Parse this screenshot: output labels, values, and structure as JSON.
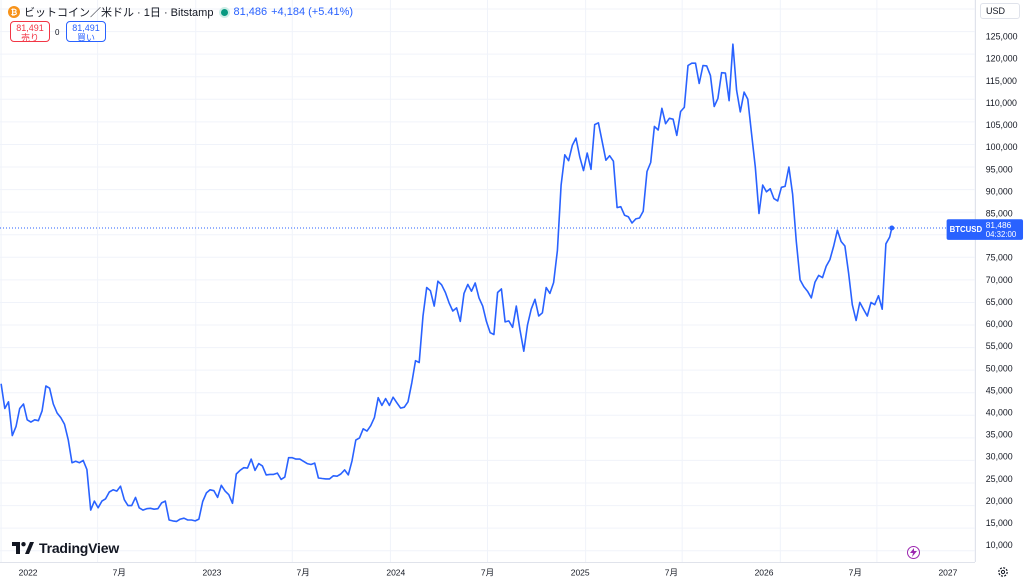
{
  "header": {
    "coin_icon": "bitcoin-icon",
    "title": "ビットコイン／米ドル · 1日 · Bitstamp",
    "last": "81,486",
    "change": "+4,184 (+5.41%)"
  },
  "trade": {
    "sell_price": "81,491",
    "sell_label": "売り",
    "spread": "0",
    "buy_price": "81,491",
    "buy_label": "買い"
  },
  "currency": "USD",
  "price_tag": {
    "symbol": "BTCUSD",
    "price": "81,486",
    "countdown": "04:32:00"
  },
  "logo_text": "TradingView",
  "colors": {
    "line": "#2962ff",
    "grid": "#f0f3fa",
    "sell": "#f23645",
    "buy": "#2962ff"
  },
  "chart_data": {
    "type": "line",
    "series": [
      {
        "values": [
          [
            "2022-01-01",
            47000
          ],
          [
            "2022-01-08",
            41500
          ],
          [
            "2022-01-15",
            43000
          ],
          [
            "2022-01-22",
            35500
          ],
          [
            "2022-01-29",
            37500
          ],
          [
            "2022-02-05",
            41500
          ],
          [
            "2022-02-12",
            42500
          ],
          [
            "2022-02-19",
            39000
          ],
          [
            "2022-02-26",
            38500
          ],
          [
            "2022-03-05",
            39000
          ],
          [
            "2022-03-12",
            38800
          ],
          [
            "2022-03-19",
            41000
          ],
          [
            "2022-03-26",
            46500
          ],
          [
            "2022-04-02",
            46000
          ],
          [
            "2022-04-09",
            42500
          ],
          [
            "2022-04-16",
            40500
          ],
          [
            "2022-04-23",
            39500
          ],
          [
            "2022-04-30",
            38000
          ],
          [
            "2022-05-07",
            34500
          ],
          [
            "2022-05-14",
            29500
          ],
          [
            "2022-05-21",
            29800
          ],
          [
            "2022-05-28",
            29500
          ],
          [
            "2022-06-04",
            30000
          ],
          [
            "2022-06-11",
            28000
          ],
          [
            "2022-06-18",
            19000
          ],
          [
            "2022-06-25",
            21000
          ],
          [
            "2022-07-02",
            19500
          ],
          [
            "2022-07-09",
            21000
          ],
          [
            "2022-07-16",
            21500
          ],
          [
            "2022-07-23",
            23000
          ],
          [
            "2022-07-30",
            23500
          ],
          [
            "2022-08-06",
            23200
          ],
          [
            "2022-08-13",
            24300
          ],
          [
            "2022-08-20",
            21300
          ],
          [
            "2022-08-27",
            20000
          ],
          [
            "2022-09-03",
            20000
          ],
          [
            "2022-09-10",
            21800
          ],
          [
            "2022-09-17",
            19500
          ],
          [
            "2022-09-24",
            19000
          ],
          [
            "2022-10-01",
            19300
          ],
          [
            "2022-10-08",
            19400
          ],
          [
            "2022-10-15",
            19200
          ],
          [
            "2022-10-22",
            19300
          ],
          [
            "2022-10-29",
            20600
          ],
          [
            "2022-11-05",
            21000
          ],
          [
            "2022-11-12",
            16800
          ],
          [
            "2022-11-19",
            16600
          ],
          [
            "2022-11-26",
            16500
          ],
          [
            "2022-12-03",
            17000
          ],
          [
            "2022-12-10",
            17200
          ],
          [
            "2022-12-17",
            16800
          ],
          [
            "2022-12-24",
            16800
          ],
          [
            "2022-12-31",
            16600
          ],
          [
            "2023-01-07",
            17000
          ],
          [
            "2023-01-14",
            20900
          ],
          [
            "2023-01-21",
            22800
          ],
          [
            "2023-01-28",
            23500
          ],
          [
            "2023-02-04",
            23300
          ],
          [
            "2023-02-11",
            21800
          ],
          [
            "2023-02-18",
            24500
          ],
          [
            "2023-02-25",
            23200
          ],
          [
            "2023-03-04",
            22400
          ],
          [
            "2023-03-11",
            20500
          ],
          [
            "2023-03-18",
            27000
          ],
          [
            "2023-03-25",
            27800
          ],
          [
            "2023-04-01",
            28400
          ],
          [
            "2023-04-08",
            28300
          ],
          [
            "2023-04-15",
            30300
          ],
          [
            "2023-04-22",
            27800
          ],
          [
            "2023-04-29",
            29300
          ],
          [
            "2023-05-06",
            28800
          ],
          [
            "2023-05-13",
            26800
          ],
          [
            "2023-05-20",
            26900
          ],
          [
            "2023-05-27",
            26900
          ],
          [
            "2023-06-03",
            27200
          ],
          [
            "2023-06-10",
            25800
          ],
          [
            "2023-06-17",
            26300
          ],
          [
            "2023-06-24",
            30600
          ],
          [
            "2023-07-01",
            30600
          ],
          [
            "2023-07-08",
            30300
          ],
          [
            "2023-07-15",
            30300
          ],
          [
            "2023-07-22",
            29800
          ],
          [
            "2023-07-29",
            29300
          ],
          [
            "2023-08-05",
            29100
          ],
          [
            "2023-08-12",
            29400
          ],
          [
            "2023-08-19",
            26100
          ],
          [
            "2023-08-26",
            26000
          ],
          [
            "2023-09-02",
            25900
          ],
          [
            "2023-09-09",
            25900
          ],
          [
            "2023-09-16",
            26600
          ],
          [
            "2023-09-23",
            26500
          ],
          [
            "2023-09-30",
            27000
          ],
          [
            "2023-10-07",
            27900
          ],
          [
            "2023-10-14",
            26800
          ],
          [
            "2023-10-21",
            29900
          ],
          [
            "2023-10-28",
            34500
          ],
          [
            "2023-11-04",
            35000
          ],
          [
            "2023-11-11",
            37000
          ],
          [
            "2023-11-18",
            36500
          ],
          [
            "2023-11-25",
            37700
          ],
          [
            "2023-12-02",
            39500
          ],
          [
            "2023-12-09",
            43900
          ],
          [
            "2023-12-16",
            42200
          ],
          [
            "2023-12-23",
            43700
          ],
          [
            "2023-12-30",
            42200
          ],
          [
            "2024-01-06",
            44000
          ],
          [
            "2024-01-13",
            42800
          ],
          [
            "2024-01-20",
            41600
          ],
          [
            "2024-01-27",
            41800
          ],
          [
            "2024-02-03",
            43000
          ],
          [
            "2024-02-10",
            47200
          ],
          [
            "2024-02-17",
            52100
          ],
          [
            "2024-02-24",
            51700
          ],
          [
            "2024-03-02",
            62000
          ],
          [
            "2024-03-09",
            68300
          ],
          [
            "2024-03-16",
            67600
          ],
          [
            "2024-03-23",
            64200
          ],
          [
            "2024-03-30",
            69700
          ],
          [
            "2024-04-06",
            68900
          ],
          [
            "2024-04-13",
            67200
          ],
          [
            "2024-04-20",
            64900
          ],
          [
            "2024-04-27",
            63100
          ],
          [
            "2024-05-04",
            63800
          ],
          [
            "2024-05-11",
            60800
          ],
          [
            "2024-05-18",
            67000
          ],
          [
            "2024-05-25",
            69000
          ],
          [
            "2024-06-01",
            67500
          ],
          [
            "2024-06-08",
            69300
          ],
          [
            "2024-06-15",
            66000
          ],
          [
            "2024-06-22",
            64200
          ],
          [
            "2024-06-29",
            60800
          ],
          [
            "2024-07-06",
            58300
          ],
          [
            "2024-07-13",
            57900
          ],
          [
            "2024-07-20",
            67200
          ],
          [
            "2024-07-27",
            68000
          ],
          [
            "2024-08-03",
            60700
          ],
          [
            "2024-08-10",
            60900
          ],
          [
            "2024-08-17",
            59500
          ],
          [
            "2024-08-24",
            64200
          ],
          [
            "2024-08-31",
            58900
          ],
          [
            "2024-09-07",
            54200
          ],
          [
            "2024-09-14",
            60000
          ],
          [
            "2024-09-21",
            63500
          ],
          [
            "2024-09-28",
            65700
          ],
          [
            "2024-10-05",
            62000
          ],
          [
            "2024-10-12",
            62700
          ],
          [
            "2024-10-19",
            68300
          ],
          [
            "2024-10-26",
            67000
          ],
          [
            "2024-11-02",
            69400
          ],
          [
            "2024-11-09",
            76500
          ],
          [
            "2024-11-16",
            91000
          ],
          [
            "2024-11-23",
            97700
          ],
          [
            "2024-11-30",
            96400
          ],
          [
            "2024-12-07",
            99800
          ],
          [
            "2024-12-14",
            101400
          ],
          [
            "2024-12-21",
            97200
          ],
          [
            "2024-12-28",
            94200
          ],
          [
            "2025-01-04",
            98100
          ],
          [
            "2025-01-11",
            94500
          ],
          [
            "2025-01-18",
            104400
          ],
          [
            "2025-01-25",
            104800
          ],
          [
            "2025-02-01",
            100600
          ],
          [
            "2025-02-08",
            96500
          ],
          [
            "2025-02-15",
            97500
          ],
          [
            "2025-02-22",
            96300
          ],
          [
            "2025-03-01",
            86000
          ],
          [
            "2025-03-08",
            86200
          ],
          [
            "2025-03-15",
            84300
          ],
          [
            "2025-03-22",
            84000
          ],
          [
            "2025-03-29",
            82600
          ],
          [
            "2025-04-05",
            83500
          ],
          [
            "2025-04-12",
            83700
          ],
          [
            "2025-04-19",
            85200
          ],
          [
            "2025-04-26",
            94000
          ],
          [
            "2025-05-03",
            96000
          ],
          [
            "2025-05-10",
            104000
          ],
          [
            "2025-05-17",
            103200
          ],
          [
            "2025-05-24",
            108000
          ],
          [
            "2025-05-31",
            104600
          ],
          [
            "2025-06-07",
            105800
          ],
          [
            "2025-06-14",
            105600
          ],
          [
            "2025-06-21",
            102000
          ],
          [
            "2025-06-28",
            107300
          ],
          [
            "2025-07-05",
            108200
          ],
          [
            "2025-07-12",
            117500
          ],
          [
            "2025-07-19",
            118000
          ],
          [
            "2025-07-26",
            118000
          ],
          [
            "2025-08-02",
            113500
          ],
          [
            "2025-08-09",
            117500
          ],
          [
            "2025-08-16",
            117400
          ],
          [
            "2025-08-23",
            115300
          ],
          [
            "2025-08-30",
            108400
          ],
          [
            "2025-09-06",
            110200
          ],
          [
            "2025-09-13",
            115900
          ],
          [
            "2025-09-20",
            115800
          ],
          [
            "2025-09-27",
            109700
          ],
          [
            "2025-10-04",
            122200
          ],
          [
            "2025-10-11",
            112000
          ],
          [
            "2025-10-18",
            107200
          ],
          [
            "2025-10-25",
            111600
          ],
          [
            "2025-11-01",
            110000
          ],
          [
            "2025-11-08",
            102500
          ],
          [
            "2025-11-15",
            95000
          ],
          [
            "2025-11-22",
            84700
          ],
          [
            "2025-11-29",
            91000
          ],
          [
            "2025-12-06",
            89500
          ],
          [
            "2025-12-13",
            90200
          ],
          [
            "2025-12-20",
            88000
          ],
          [
            "2025-12-27",
            87500
          ],
          [
            "2026-01-03",
            90500
          ],
          [
            "2026-01-10",
            90700
          ],
          [
            "2026-01-17",
            95000
          ],
          [
            "2026-01-24",
            89000
          ],
          [
            "2026-01-31",
            78500
          ],
          [
            "2026-02-07",
            70000
          ],
          [
            "2026-02-14",
            68500
          ],
          [
            "2026-02-21",
            67500
          ],
          [
            "2026-02-28",
            66000
          ],
          [
            "2026-03-07",
            69500
          ],
          [
            "2026-03-14",
            71000
          ],
          [
            "2026-03-21",
            70500
          ],
          [
            "2026-03-28",
            73000
          ],
          [
            "2026-04-04",
            74500
          ],
          [
            "2026-04-11",
            77500
          ],
          [
            "2026-04-18",
            81000
          ],
          [
            "2026-04-25",
            78500
          ],
          [
            "2026-05-02",
            77500
          ],
          [
            "2026-05-09",
            71500
          ],
          [
            "2026-05-16",
            64500
          ],
          [
            "2026-05-23",
            61000
          ],
          [
            "2026-05-30",
            65000
          ],
          [
            "2026-06-06",
            63500
          ],
          [
            "2026-06-13",
            62000
          ],
          [
            "2026-06-20",
            65000
          ],
          [
            "2026-06-27",
            64500
          ],
          [
            "2026-07-04",
            66500
          ],
          [
            "2026-07-11",
            63500
          ],
          [
            "2026-07-18",
            78000
          ],
          [
            "2026-07-25",
            79500
          ],
          [
            "2026-07-29",
            81486
          ]
        ]
      }
    ],
    "x_range": [
      "2021-12-30",
      "2027-01-01"
    ],
    "x_tick_labels": [
      {
        "date": "2022-01-01",
        "label": "2022"
      },
      {
        "date": "2022-07-01",
        "label": "7月"
      },
      {
        "date": "2023-01-01",
        "label": "2023"
      },
      {
        "date": "2023-07-01",
        "label": "7月"
      },
      {
        "date": "2024-01-01",
        "label": "2024"
      },
      {
        "date": "2024-07-01",
        "label": "7月"
      },
      {
        "date": "2025-01-01",
        "label": "2025"
      },
      {
        "date": "2025-07-01",
        "label": "7月"
      },
      {
        "date": "2026-01-01",
        "label": "2026"
      },
      {
        "date": "2026-07-01",
        "label": "7月"
      },
      {
        "date": "2027-01-01",
        "label": "2027"
      }
    ],
    "ylim": [
      7500,
      132000
    ],
    "y_ticks": [
      10000,
      15000,
      20000,
      25000,
      30000,
      35000,
      40000,
      45000,
      50000,
      55000,
      60000,
      65000,
      70000,
      75000,
      80000,
      85000,
      90000,
      95000,
      100000,
      105000,
      110000,
      115000,
      120000,
      125000,
      130000
    ],
    "y_tick_labels": [
      "10,000",
      "15,000",
      "20,000",
      "25,000",
      "30,000",
      "35,000",
      "40,000",
      "45,000",
      "50,000",
      "55,000",
      "60,000",
      "65,000",
      "70,000",
      "75,000",
      "80,000",
      "85,000",
      "90,000",
      "95,000",
      "100,000",
      "105,000",
      "110,000",
      "115,000",
      "120,000",
      "125,000",
      "130,000"
    ],
    "last_price": 81486,
    "grid": true
  }
}
